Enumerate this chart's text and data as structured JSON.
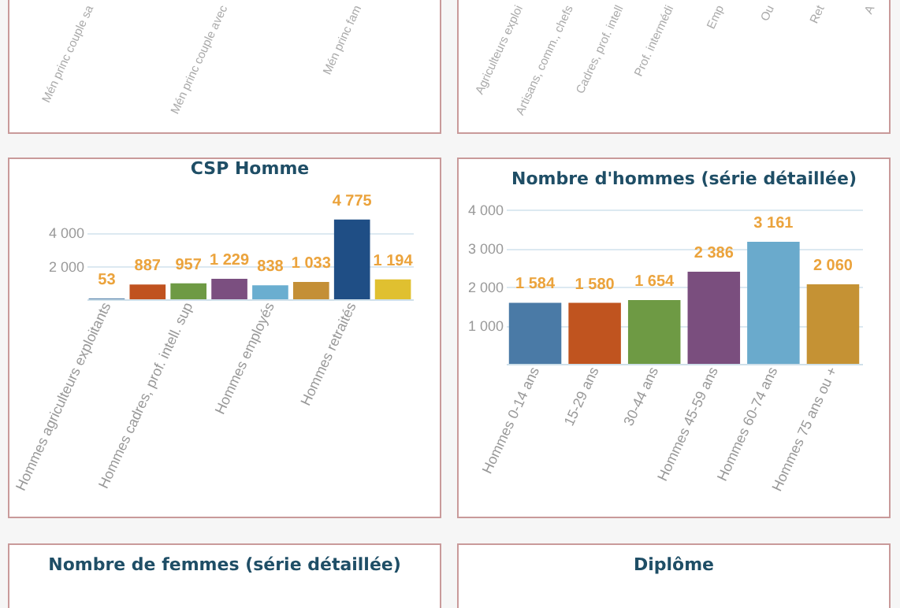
{
  "chart_data": [
    {
      "type": "other",
      "annotations": [
        "Mén princ couple sa",
        "Mén princ couple avec",
        "Mén princ fam"
      ]
    },
    {
      "type": "other",
      "annotations": [
        "Agriculteurs exploi",
        "Artisans, comm., chefs",
        "Cadres, prof. intell",
        "Prof. intermédi",
        "Emp",
        "Ou",
        "Ret",
        "A"
      ]
    },
    {
      "type": "bar",
      "title": "CSP Homme",
      "categories": [
        "Hommes agriculteurs exploitants",
        null,
        "Hommes cadres, prof. intell. sup",
        null,
        "Hommes employés",
        null,
        "Hommes retraités",
        null
      ],
      "values": [
        53,
        887,
        957,
        1229,
        838,
        1033,
        4775,
        1194
      ],
      "colors": [
        "#4a7ba6",
        "#c0521f",
        "#6e9a44",
        "#7b4f80",
        "#6aaed0",
        "#c48f36",
        "#1f4e85",
        "#e0c030"
      ],
      "value_labels": [
        "53",
        "887",
        "957",
        "1 229",
        "838",
        "1 033",
        "4 775",
        "1 194"
      ],
      "ylim": [
        0,
        5000
      ],
      "yticks": [
        {
          "value": 2000,
          "label": "2 000"
        },
        {
          "value": 4000,
          "label": "4 000"
        }
      ],
      "grid": "y"
    },
    {
      "type": "bar",
      "title": "Nombre d'hommes (série détaillée)",
      "categories": [
        "Hommes 0-14 ans",
        "15-29 ans",
        "30-44 ans",
        "Hommes 45-59 ans",
        "Hommes 60-74 ans",
        "Hommes 75 ans ou +"
      ],
      "values": [
        1584,
        1580,
        1654,
        2386,
        3161,
        2060
      ],
      "colors": [
        "#4a7aa6",
        "#c0541f",
        "#6e9a44",
        "#7a4e7e",
        "#6aaacc",
        "#c59234"
      ],
      "value_labels": [
        "1 584",
        "1 580",
        "1 654",
        "2 386",
        "3 161",
        "2 060"
      ],
      "ylim": [
        0,
        4000
      ],
      "yticks": [
        {
          "value": 1000,
          "label": "1 000"
        },
        {
          "value": 2000,
          "label": "2 000"
        },
        {
          "value": 3000,
          "label": "3 000"
        },
        {
          "value": 4000,
          "label": "4 000"
        }
      ],
      "grid": "y"
    },
    {
      "type": "other",
      "title": "Nombre de femmes (série détaillée)"
    },
    {
      "type": "other",
      "title": "Diplôme"
    }
  ]
}
